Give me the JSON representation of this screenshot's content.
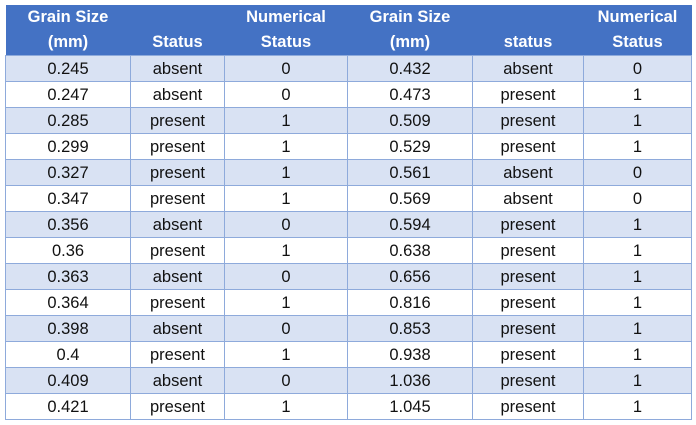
{
  "headers": [
    [
      "Grain Size",
      "(mm)"
    ],
    [
      "",
      "Status"
    ],
    [
      "Numerical",
      "Status"
    ],
    [
      "Grain Size",
      "(mm)"
    ],
    [
      "",
      "status"
    ],
    [
      "Numerical",
      "Status"
    ]
  ],
  "rows": [
    [
      "0.245",
      "absent",
      "0",
      "0.432",
      "absent",
      "0"
    ],
    [
      "0.247",
      "absent",
      "0",
      "0.473",
      "present",
      "1"
    ],
    [
      "0.285",
      "present",
      "1",
      "0.509",
      "present",
      "1"
    ],
    [
      "0.299",
      "present",
      "1",
      "0.529",
      "present",
      "1"
    ],
    [
      "0.327",
      "present",
      "1",
      "0.561",
      "absent",
      "0"
    ],
    [
      "0.347",
      "present",
      "1",
      "0.569",
      "absent",
      "0"
    ],
    [
      "0.356",
      "absent",
      "0",
      "0.594",
      "present",
      "1"
    ],
    [
      "0.36",
      "present",
      "1",
      "0.638",
      "present",
      "1"
    ],
    [
      "0.363",
      "absent",
      "0",
      "0.656",
      "present",
      "1"
    ],
    [
      "0.364",
      "present",
      "1",
      "0.816",
      "present",
      "1"
    ],
    [
      "0.398",
      "absent",
      "0",
      "0.853",
      "present",
      "1"
    ],
    [
      "0.4",
      "present",
      "1",
      "0.938",
      "present",
      "1"
    ],
    [
      "0.409",
      "absent",
      "0",
      "1.036",
      "present",
      "1"
    ],
    [
      "0.421",
      "present",
      "1",
      "1.045",
      "present",
      "1"
    ]
  ],
  "colors": {
    "header_bg": "#4472c4",
    "header_text": "#ffffff",
    "band_row": "#d9e2f3",
    "plain_row": "#ffffff",
    "grid": "#8eaadb"
  }
}
